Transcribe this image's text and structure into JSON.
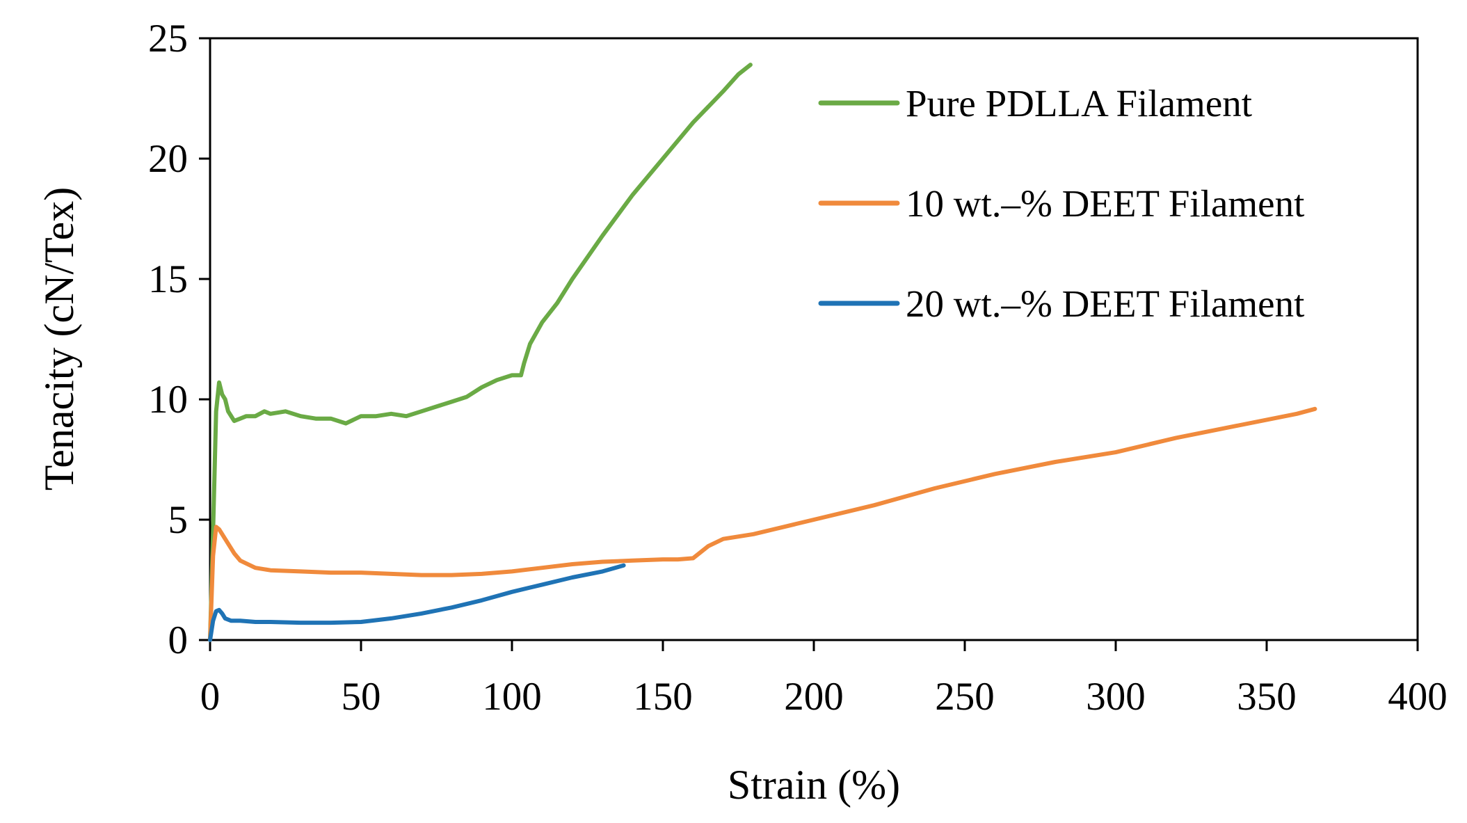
{
  "chart_data": {
    "type": "line",
    "title": "",
    "xlabel": "Strain (%)",
    "ylabel": "Tenacity (cN/Tex)",
    "xlim": [
      0,
      400
    ],
    "ylim": [
      0,
      25
    ],
    "xticks": [
      0,
      50,
      100,
      150,
      200,
      250,
      300,
      350,
      400
    ],
    "yticks": [
      0,
      5,
      10,
      15,
      20,
      25
    ],
    "grid": false,
    "legend_position": "top-right",
    "series": [
      {
        "name": "Pure PDLLA Filament",
        "color": "#6aaa45",
        "x": [
          0,
          1,
          2,
          3,
          4,
          5,
          6,
          7,
          8,
          10,
          12,
          15,
          18,
          20,
          25,
          30,
          35,
          40,
          45,
          50,
          55,
          60,
          65,
          70,
          75,
          80,
          85,
          90,
          95,
          100,
          103,
          104,
          106,
          110,
          115,
          120,
          130,
          140,
          150,
          160,
          170,
          175,
          179
        ],
        "y": [
          0,
          4.5,
          9.5,
          10.7,
          10.2,
          10.0,
          9.5,
          9.3,
          9.1,
          9.2,
          9.3,
          9.3,
          9.5,
          9.4,
          9.5,
          9.3,
          9.2,
          9.2,
          9.0,
          9.3,
          9.3,
          9.4,
          9.3,
          9.5,
          9.7,
          9.9,
          10.1,
          10.5,
          10.8,
          11.0,
          11.0,
          11.5,
          12.3,
          13.2,
          14.0,
          15.0,
          16.8,
          18.5,
          20.0,
          21.5,
          22.8,
          23.5,
          23.9
        ]
      },
      {
        "name": "10 wt.–% DEET Filament",
        "color": "#f08a3c",
        "x": [
          0,
          1,
          2,
          3,
          5,
          8,
          10,
          15,
          20,
          30,
          40,
          50,
          60,
          70,
          80,
          90,
          100,
          110,
          120,
          130,
          140,
          150,
          155,
          160,
          165,
          170,
          180,
          190,
          200,
          220,
          240,
          260,
          280,
          300,
          320,
          340,
          360,
          366
        ],
        "y": [
          0,
          3.5,
          4.7,
          4.6,
          4.2,
          3.6,
          3.3,
          3.0,
          2.9,
          2.85,
          2.8,
          2.8,
          2.75,
          2.7,
          2.7,
          2.75,
          2.85,
          3.0,
          3.15,
          3.25,
          3.3,
          3.35,
          3.35,
          3.4,
          3.9,
          4.2,
          4.4,
          4.7,
          5.0,
          5.6,
          6.3,
          6.9,
          7.4,
          7.8,
          8.4,
          8.9,
          9.4,
          9.6
        ]
      },
      {
        "name": "20 wt.–% DEET Filament",
        "color": "#1f73b5",
        "x": [
          0,
          1,
          2,
          3,
          4,
          5,
          7,
          10,
          15,
          20,
          30,
          40,
          50,
          60,
          70,
          80,
          90,
          100,
          110,
          120,
          130,
          137
        ],
        "y": [
          0,
          0.8,
          1.2,
          1.25,
          1.1,
          0.9,
          0.8,
          0.8,
          0.75,
          0.75,
          0.72,
          0.72,
          0.75,
          0.9,
          1.1,
          1.35,
          1.65,
          2.0,
          2.3,
          2.6,
          2.85,
          3.1
        ]
      }
    ]
  }
}
